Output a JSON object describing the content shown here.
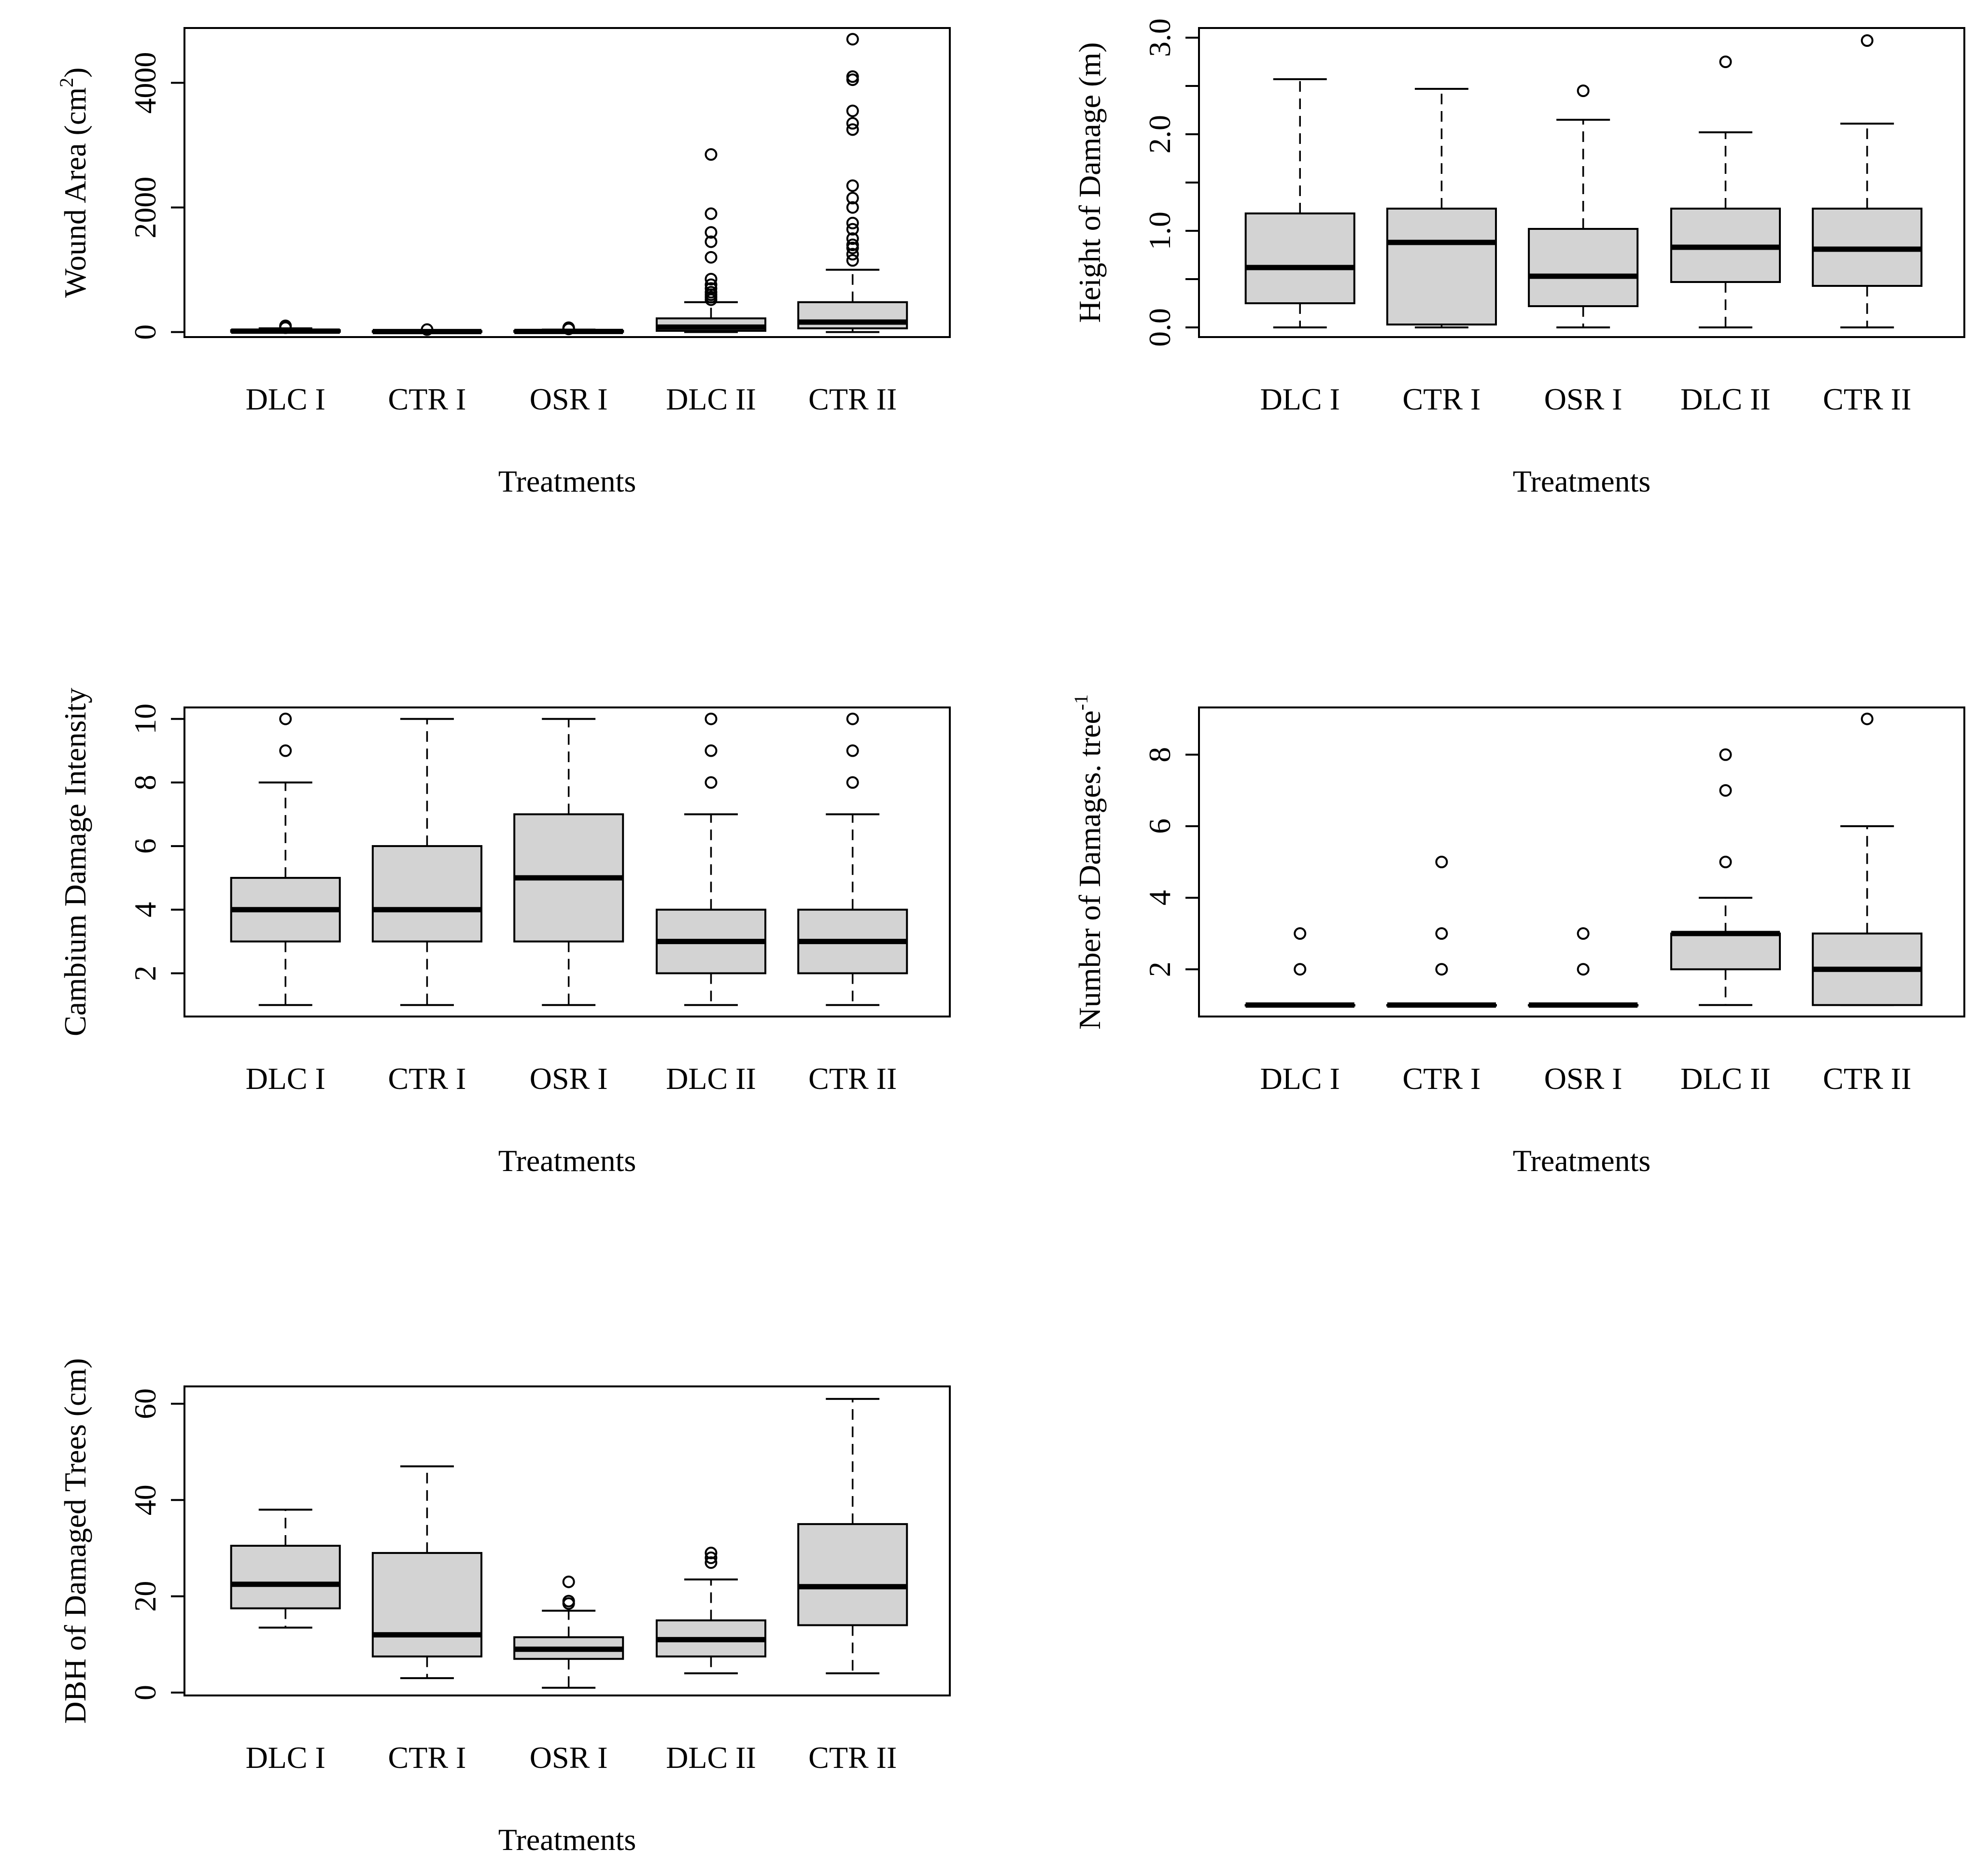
{
  "figure": {
    "description_free": true,
    "colors": {
      "box_fill": "#d3d3d3",
      "stroke": "#000000",
      "background": "#ffffff"
    }
  },
  "chart_data": [
    {
      "type": "boxplot",
      "id": "wound-area",
      "xlabel": "Treatments",
      "ylabel": {
        "prefix": "Wound Area (cm",
        "sup": "2",
        "suffix": ")"
      },
      "categories": [
        "DLC I",
        "CTR I",
        "OSR I",
        "DLC II",
        "CTR II"
      ],
      "ylim": [
        -80,
        4880
      ],
      "yticks": [
        0,
        2000,
        4000
      ],
      "ytick_labels": [
        "0",
        "2000",
        "4000"
      ],
      "boxes": [
        {
          "whisker_low": 0,
          "q1": 5,
          "median": 15,
          "q3": 30,
          "whisker_high": 60,
          "outliers": [
            70,
            90,
            100
          ]
        },
        {
          "whisker_low": 0,
          "q1": 3,
          "median": 8,
          "q3": 15,
          "whisker_high": 30,
          "outliers": [
            40
          ]
        },
        {
          "whisker_low": 0,
          "q1": 4,
          "median": 10,
          "q3": 20,
          "whisker_high": 40,
          "outliers": [
            50,
            60,
            70
          ]
        },
        {
          "whisker_low": 0,
          "q1": 20,
          "median": 80,
          "q3": 220,
          "whisker_high": 480,
          "outliers": [
            520,
            560,
            600,
            640,
            700,
            760,
            850,
            1200,
            1450,
            1600,
            1900,
            2850
          ]
        },
        {
          "whisker_low": 0,
          "q1": 60,
          "median": 160,
          "q3": 480,
          "whisker_high": 1000,
          "outliers": [
            1150,
            1250,
            1350,
            1400,
            1500,
            1650,
            1750,
            2000,
            2150,
            2350,
            3250,
            3350,
            3550,
            4050,
            4100,
            4700
          ]
        }
      ]
    },
    {
      "type": "boxplot",
      "id": "height-of-damage",
      "xlabel": "Treatments",
      "ylabel": {
        "prefix": "Height of Damage (m)",
        "sup": "",
        "suffix": ""
      },
      "categories": [
        "DLC I",
        "CTR I",
        "OSR I",
        "DLC II",
        "CTR II"
      ],
      "ylim": [
        -0.1,
        3.1
      ],
      "yticks": [
        0,
        0.5,
        1,
        1.5,
        2,
        2.5,
        3
      ],
      "ytick_labels": [
        "0.0",
        "",
        "1.0",
        "",
        "2.0",
        "",
        "3.0"
      ],
      "boxes": [
        {
          "whisker_low": 0,
          "q1": 0.25,
          "median": 0.62,
          "q3": 1.18,
          "whisker_high": 2.57,
          "outliers": []
        },
        {
          "whisker_low": 0,
          "q1": 0.03,
          "median": 0.88,
          "q3": 1.23,
          "whisker_high": 2.47,
          "outliers": []
        },
        {
          "whisker_low": 0,
          "q1": 0.22,
          "median": 0.53,
          "q3": 1.02,
          "whisker_high": 2.15,
          "outliers": [
            2.45
          ]
        },
        {
          "whisker_low": 0,
          "q1": 0.47,
          "median": 0.83,
          "q3": 1.23,
          "whisker_high": 2.02,
          "outliers": [
            2.75
          ]
        },
        {
          "whisker_low": 0,
          "q1": 0.43,
          "median": 0.81,
          "q3": 1.23,
          "whisker_high": 2.11,
          "outliers": [
            2.97
          ]
        }
      ]
    },
    {
      "type": "boxplot",
      "id": "cambium-damage-intensity",
      "xlabel": "Treatments",
      "ylabel": {
        "prefix": "Cambium Damage Intensity",
        "sup": "",
        "suffix": ""
      },
      "categories": [
        "DLC I",
        "CTR I",
        "OSR I",
        "DLC II",
        "CTR II"
      ],
      "ylim": [
        0.64,
        10.36
      ],
      "yticks": [
        2,
        4,
        6,
        8,
        10
      ],
      "ytick_labels": [
        "2",
        "4",
        "6",
        "8",
        "10"
      ],
      "boxes": [
        {
          "whisker_low": 1,
          "q1": 3,
          "median": 4,
          "q3": 5,
          "whisker_high": 8,
          "outliers": [
            9,
            10
          ]
        },
        {
          "whisker_low": 1,
          "q1": 3,
          "median": 4,
          "q3": 6,
          "whisker_high": 10,
          "outliers": []
        },
        {
          "whisker_low": 1,
          "q1": 3,
          "median": 5,
          "q3": 7,
          "whisker_high": 10,
          "outliers": []
        },
        {
          "whisker_low": 1,
          "q1": 2,
          "median": 3,
          "q3": 4,
          "whisker_high": 7,
          "outliers": [
            8,
            9,
            10
          ]
        },
        {
          "whisker_low": 1,
          "q1": 2,
          "median": 3,
          "q3": 4,
          "whisker_high": 7,
          "outliers": [
            8,
            9,
            10
          ]
        }
      ]
    },
    {
      "type": "boxplot",
      "id": "number-of-damages",
      "xlabel": "Treatments",
      "ylabel": {
        "prefix": "Number of Damages. tree",
        "sup": "-1",
        "suffix": ""
      },
      "categories": [
        "DLC I",
        "CTR I",
        "OSR I",
        "DLC II",
        "CTR II"
      ],
      "ylim": [
        0.68,
        9.32
      ],
      "yticks": [
        2,
        4,
        6,
        8
      ],
      "ytick_labels": [
        "2",
        "4",
        "6",
        "8"
      ],
      "boxes": [
        {
          "whisker_low": 1,
          "q1": 1,
          "median": 1,
          "q3": 1,
          "whisker_high": 1,
          "outliers": [
            2,
            3
          ]
        },
        {
          "whisker_low": 1,
          "q1": 1,
          "median": 1,
          "q3": 1,
          "whisker_high": 1,
          "outliers": [
            2,
            3,
            5
          ]
        },
        {
          "whisker_low": 1,
          "q1": 1,
          "median": 1,
          "q3": 1,
          "whisker_high": 1,
          "outliers": [
            2,
            3
          ]
        },
        {
          "whisker_low": 1,
          "q1": 2,
          "median": 3,
          "q3": 3,
          "whisker_high": 4,
          "outliers": [
            5,
            7,
            8
          ]
        },
        {
          "whisker_low": 1,
          "q1": 1,
          "median": 2,
          "q3": 3,
          "whisker_high": 6,
          "outliers": [
            9
          ]
        }
      ]
    },
    {
      "type": "boxplot",
      "id": "dbh-of-damaged-trees",
      "xlabel": "Treatments",
      "ylabel": {
        "prefix": "DBH of Damaged Trees (cm)",
        "sup": "",
        "suffix": ""
      },
      "categories": [
        "DLC I",
        "CTR I",
        "OSR I",
        "DLC II",
        "CTR II"
      ],
      "ylim": [
        -0.6,
        63.6
      ],
      "yticks": [
        0,
        20,
        40,
        60
      ],
      "ytick_labels": [
        "0",
        "20",
        "40",
        "60"
      ],
      "boxes": [
        {
          "whisker_low": 13.5,
          "q1": 17.5,
          "median": 22.5,
          "q3": 30.5,
          "whisker_high": 38,
          "outliers": []
        },
        {
          "whisker_low": 3,
          "q1": 7.5,
          "median": 12,
          "q3": 29,
          "whisker_high": 47,
          "outliers": []
        },
        {
          "whisker_low": 1,
          "q1": 7,
          "median": 9,
          "q3": 11.5,
          "whisker_high": 17,
          "outliers": [
            18.5,
            19,
            23
          ]
        },
        {
          "whisker_low": 4,
          "q1": 7.5,
          "median": 11,
          "q3": 15,
          "whisker_high": 23.5,
          "outliers": [
            27,
            28,
            29
          ]
        },
        {
          "whisker_low": 4,
          "q1": 14,
          "median": 22,
          "q3": 35,
          "whisker_high": 61,
          "outliers": []
        }
      ]
    }
  ]
}
